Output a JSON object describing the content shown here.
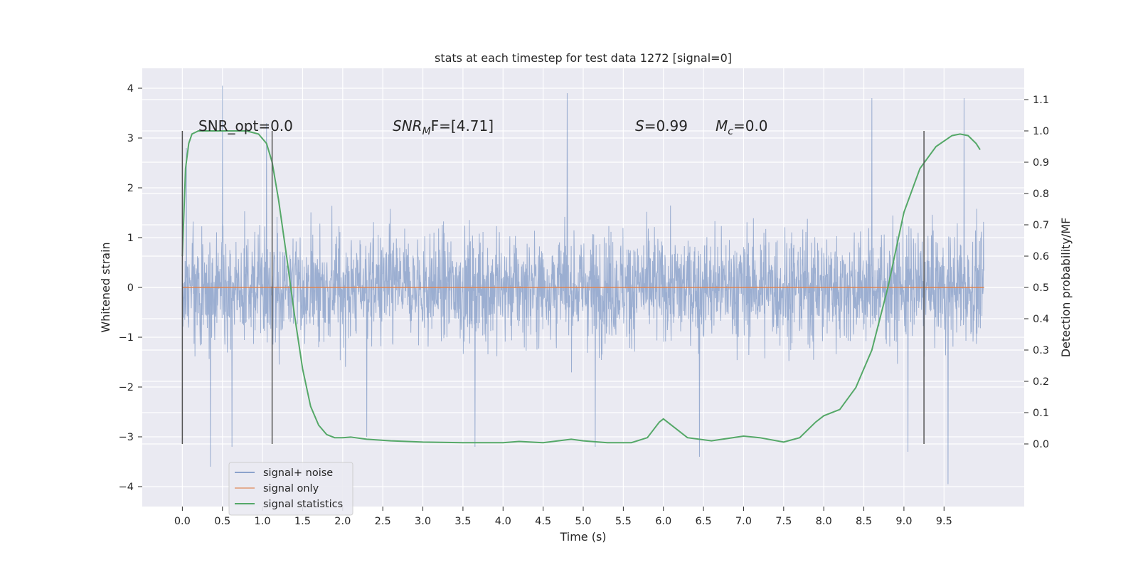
{
  "chart_data": {
    "type": "line",
    "title": "stats at each timestep for test data 1272 [signal=0]",
    "xlabel": "Time (s)",
    "ylabel": "Whitened strain",
    "ylabel_right": "Detection probability/MF",
    "xlim": [
      -0.5,
      10.5
    ],
    "ylim": [
      -4.4,
      4.4
    ],
    "ylim_right": [
      -0.2,
      1.2
    ],
    "x_ticks": [
      "0.0",
      "0.5",
      "1.0",
      "1.5",
      "2.0",
      "2.5",
      "3.0",
      "3.5",
      "4.0",
      "4.5",
      "5.0",
      "5.5",
      "6.0",
      "6.5",
      "7.0",
      "7.5",
      "8.0",
      "8.5",
      "9.0",
      "9.5"
    ],
    "x_tick_values": [
      0.0,
      0.5,
      1.0,
      1.5,
      2.0,
      2.5,
      3.0,
      3.5,
      4.0,
      4.5,
      5.0,
      5.5,
      6.0,
      6.5,
      7.0,
      7.5,
      8.0,
      8.5,
      9.0,
      9.5
    ],
    "y_ticks": [
      "−4",
      "−3",
      "−2",
      "−1",
      "0",
      "1",
      "2",
      "3",
      "4"
    ],
    "y_tick_values": [
      -4,
      -3,
      -2,
      -1,
      0,
      1,
      2,
      3,
      4
    ],
    "y_ticks_right": [
      "0.0",
      "0.1",
      "0.2",
      "0.3",
      "0.4",
      "0.5",
      "0.6",
      "0.7",
      "0.8",
      "0.9",
      "1.0",
      "1.1"
    ],
    "y_tick_values_right": [
      0.0,
      0.1,
      0.2,
      0.3,
      0.4,
      0.5,
      0.6,
      0.7,
      0.8,
      0.9,
      1.0,
      1.1
    ],
    "grid": true,
    "legend_position": "lower-left",
    "noise_series": {
      "name": "signal+ noise",
      "color": "#4c72b0",
      "x_range": [
        0.0,
        10.0
      ],
      "typical_amplitude": [
        -2.0,
        2.0
      ],
      "peaks": [
        {
          "x": 0.05,
          "y": 2.8
        },
        {
          "x": 0.5,
          "y": 4.05
        },
        {
          "x": 0.35,
          "y": -3.6
        },
        {
          "x": 0.62,
          "y": -3.2
        },
        {
          "x": 1.05,
          "y": 3.3
        },
        {
          "x": 2.3,
          "y": -3.0
        },
        {
          "x": 3.65,
          "y": -3.2
        },
        {
          "x": 4.8,
          "y": 3.9
        },
        {
          "x": 5.15,
          "y": -3.2
        },
        {
          "x": 6.45,
          "y": -3.4
        },
        {
          "x": 8.6,
          "y": 3.8
        },
        {
          "x": 9.05,
          "y": -3.3
        },
        {
          "x": 9.55,
          "y": -3.95
        },
        {
          "x": 9.75,
          "y": 3.8
        }
      ]
    },
    "series": [
      {
        "name": "signal only",
        "color": "#dd8452",
        "axis": "left",
        "x": [
          0.0,
          10.0
        ],
        "y": [
          0.0,
          0.0
        ]
      },
      {
        "name": "signal statistics",
        "color": "#55a868",
        "axis": "right",
        "x": [
          0.0,
          0.04,
          0.08,
          0.12,
          0.2,
          0.3,
          0.5,
          0.8,
          0.95,
          1.05,
          1.12,
          1.2,
          1.3,
          1.4,
          1.5,
          1.6,
          1.7,
          1.8,
          1.9,
          2.0,
          2.1,
          2.3,
          2.6,
          3.0,
          3.5,
          4.0,
          4.2,
          4.5,
          4.85,
          5.0,
          5.3,
          5.6,
          5.8,
          5.95,
          6.0,
          6.1,
          6.3,
          6.6,
          7.0,
          7.2,
          7.5,
          7.7,
          7.9,
          8.0,
          8.2,
          8.4,
          8.6,
          8.8,
          9.0,
          9.2,
          9.4,
          9.6,
          9.7,
          9.8,
          9.9,
          9.95
        ],
        "y": [
          0.6,
          0.88,
          0.96,
          0.99,
          1.0,
          1.0,
          1.0,
          1.0,
          0.99,
          0.96,
          0.9,
          0.78,
          0.6,
          0.41,
          0.24,
          0.12,
          0.06,
          0.03,
          0.02,
          0.02,
          0.022,
          0.015,
          0.01,
          0.006,
          0.004,
          0.004,
          0.008,
          0.004,
          0.015,
          0.01,
          0.004,
          0.004,
          0.02,
          0.07,
          0.08,
          0.06,
          0.02,
          0.01,
          0.025,
          0.02,
          0.006,
          0.02,
          0.07,
          0.09,
          0.11,
          0.18,
          0.3,
          0.5,
          0.74,
          0.88,
          0.95,
          0.985,
          0.99,
          0.985,
          0.96,
          0.94
        ]
      }
    ],
    "vertical_markers": [
      0.0,
      1.12,
      9.25
    ],
    "annotations": [
      {
        "text": "SNR_opt=0.0",
        "x": 0.2
      },
      {
        "text": "F=[4.71]",
        "math_prefix": "SNR",
        "math_sub": "M",
        "x": 2.6
      },
      {
        "text": "=0.99",
        "math_prefix": "S",
        "x": 5.6
      },
      {
        "text": "=0.0",
        "math_prefix": "M",
        "math_sub": "c",
        "x": 6.6
      }
    ],
    "colors": {
      "background": "#eaeaf2",
      "grid": "#ffffff",
      "marker": "#555555"
    }
  }
}
